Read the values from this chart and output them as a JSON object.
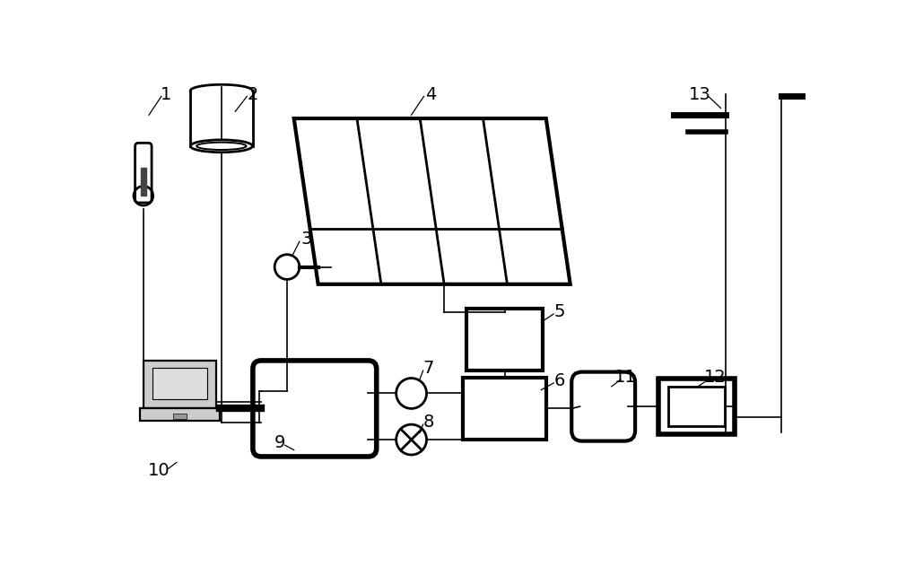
{
  "bg_color": "#ffffff",
  "line_color": "#000000",
  "component_lw": 2.0,
  "conn_lw": 1.2,
  "fig_width": 10.0,
  "fig_height": 6.51,
  "dpi": 100
}
